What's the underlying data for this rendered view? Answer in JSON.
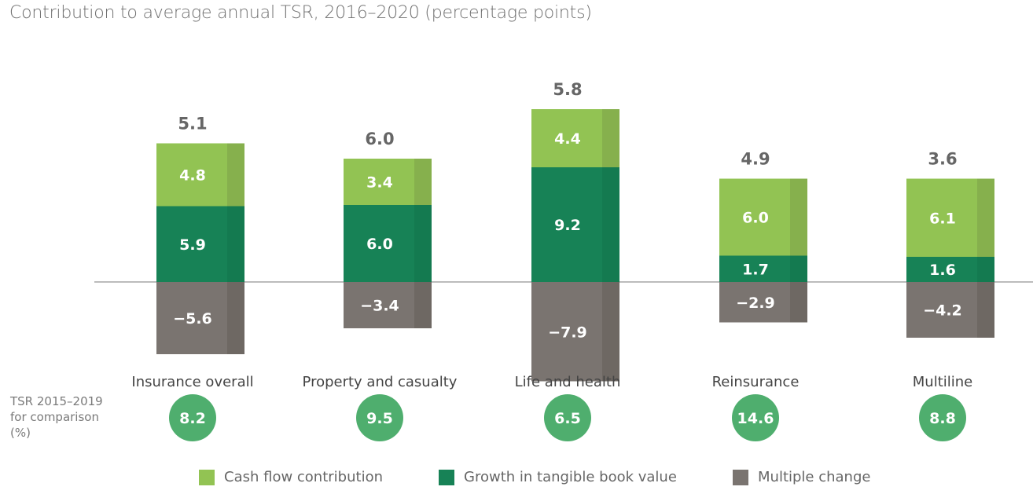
{
  "chart_data": {
    "type": "bar",
    "stacked": true,
    "title": "Contribution to average annual TSR, 2016–2020 (percentage points)",
    "categories": [
      "Insurance overall",
      "Property and casualty",
      "Life and health",
      "Reinsurance",
      "Multiline"
    ],
    "series": [
      {
        "name": "Cash flow contribution",
        "color": "#92c353",
        "values": [
          4.8,
          3.4,
          4.4,
          6.0,
          6.1
        ]
      },
      {
        "name": "Growth in tangible book value",
        "color": "#178256",
        "values": [
          5.9,
          6.0,
          9.2,
          1.7,
          1.6
        ]
      },
      {
        "name": "Multiple change",
        "color": "#7a7470",
        "values": [
          -5.6,
          -3.4,
          -7.9,
          -2.9,
          -4.2
        ]
      }
    ],
    "totals": [
      "5.1",
      "6.0",
      "5.8",
      "4.9",
      "3.6"
    ],
    "labels": {
      "cash": [
        "4.8",
        "3.4",
        "4.4",
        "6.0",
        "6.1"
      ],
      "growth": [
        "5.9",
        "6.0",
        "9.2",
        "1.7",
        "1.6"
      ],
      "multiple": [
        "−5.6",
        "−3.4",
        "−7.9",
        "−2.9",
        "−4.2"
      ]
    },
    "comparison": {
      "label_lines": [
        "TSR 2015–2019",
        "for comparison",
        "(%)"
      ],
      "values": [
        "8.2",
        "9.5",
        "6.5",
        "14.6",
        "8.8"
      ],
      "color": "#4fae6e"
    },
    "legend_placement": "bottom",
    "grid": false
  }
}
